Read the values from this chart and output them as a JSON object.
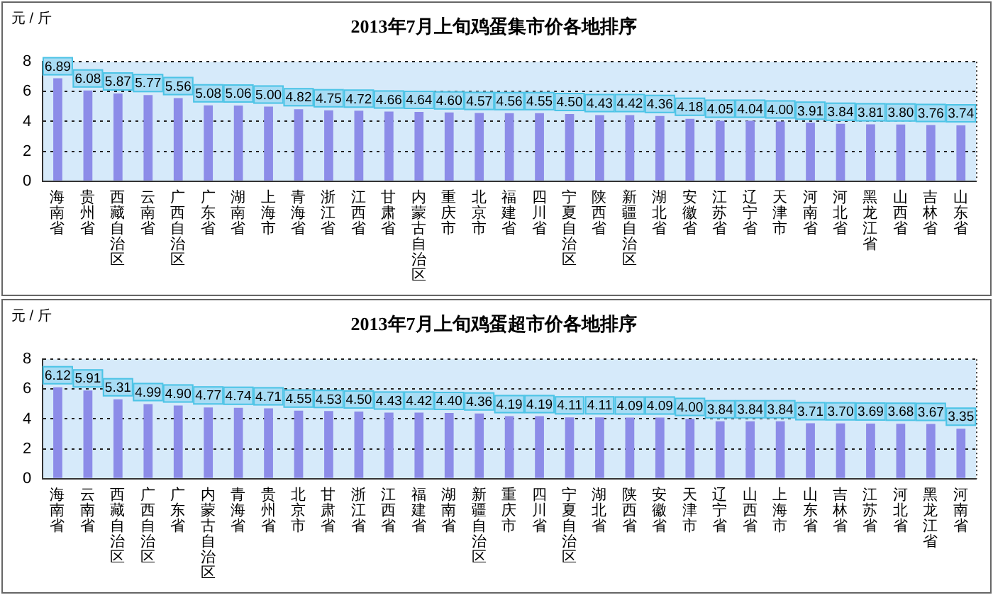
{
  "chart_data": [
    {
      "type": "bar",
      "title": "2013年7月上旬鸡蛋集市价各地排序",
      "ylabel": "元 / 斤",
      "categories": [
        "海南省",
        "贵州省",
        "西藏自治区",
        "云南省",
        "广西自治区",
        "广东省",
        "湖南省",
        "上海市",
        "青海省",
        "浙江省",
        "江西省",
        "甘肃省",
        "内蒙古自治区",
        "重庆市",
        "北京市",
        "福建省",
        "四川省",
        "宁夏自治区",
        "陕西省",
        "新疆自治区",
        "湖北省",
        "安徽省",
        "江苏省",
        "辽宁省",
        "天津市",
        "河南省",
        "河北省",
        "黑龙江省",
        "山西省",
        "吉林省",
        "山东省"
      ],
      "values": [
        6.89,
        6.08,
        5.87,
        5.77,
        5.56,
        5.08,
        5.06,
        5.0,
        4.82,
        4.75,
        4.72,
        4.66,
        4.64,
        4.6,
        4.57,
        4.56,
        4.55,
        4.5,
        4.43,
        4.42,
        4.36,
        4.18,
        4.05,
        4.04,
        4.0,
        3.91,
        3.84,
        3.81,
        3.8,
        3.76,
        3.74
      ],
      "value_labels": [
        "6.89",
        "6.08",
        "5.87",
        "5.77",
        "5.56",
        "5.08",
        "5.06",
        "5.00",
        "4.82",
        "4.75",
        "4.72",
        "4.66",
        "4.64",
        "4.60",
        "4.57",
        "4.56",
        "4.55",
        "4.50",
        "4.43",
        "4.42",
        "4.36",
        "4.18",
        "4.05",
        "4.04",
        "4.00",
        "3.91",
        "3.84",
        "3.81",
        "3.80",
        "3.76",
        "3.74"
      ],
      "color": "#8c8ce8",
      "ylim": [
        0,
        8
      ],
      "yticks": [
        0,
        2,
        4,
        6,
        8
      ],
      "grid": "y"
    },
    {
      "type": "bar",
      "title": "2013年7月上旬鸡蛋超市价各地排序",
      "ylabel": "元 / 斤",
      "categories": [
        "海南省",
        "云南省",
        "西藏自治区",
        "广西自治区",
        "广东省",
        "内蒙古自治区",
        "青海省",
        "贵州省",
        "北京市",
        "甘肃省",
        "浙江省",
        "江西省",
        "福建省",
        "湖南省",
        "新疆自治区",
        "重庆市",
        "四川省",
        "宁夏自治区",
        "湖北省",
        "陕西省",
        "安徽省",
        "天津市",
        "辽宁省",
        "山西省",
        "上海市",
        "山东省",
        "吉林省",
        "江苏省",
        "河北省",
        "黑龙江省",
        "河南省"
      ],
      "values": [
        6.12,
        5.91,
        5.31,
        4.99,
        4.9,
        4.77,
        4.74,
        4.71,
        4.55,
        4.53,
        4.5,
        4.43,
        4.42,
        4.4,
        4.36,
        4.19,
        4.19,
        4.11,
        4.11,
        4.09,
        4.09,
        4.0,
        3.84,
        3.84,
        3.84,
        3.71,
        3.7,
        3.69,
        3.68,
        3.67,
        3.35
      ],
      "value_labels": [
        "6.12",
        "5.91",
        "5.31",
        "4.99",
        "4.90",
        "4.77",
        "4.74",
        "4.71",
        "4.55",
        "4.53",
        "4.50",
        "4.43",
        "4.42",
        "4.40",
        "4.36",
        "4.19",
        "4.19",
        "4.11",
        "4.11",
        "4.09",
        "4.09",
        "4.00",
        "3.84",
        "3.84",
        "3.84",
        "3.71",
        "3.70",
        "3.69",
        "3.68",
        "3.67",
        "3.35"
      ],
      "color": "#8c8ce8",
      "ylim": [
        0,
        8
      ],
      "yticks": [
        0,
        2,
        4,
        6,
        8
      ],
      "grid": "y"
    }
  ]
}
